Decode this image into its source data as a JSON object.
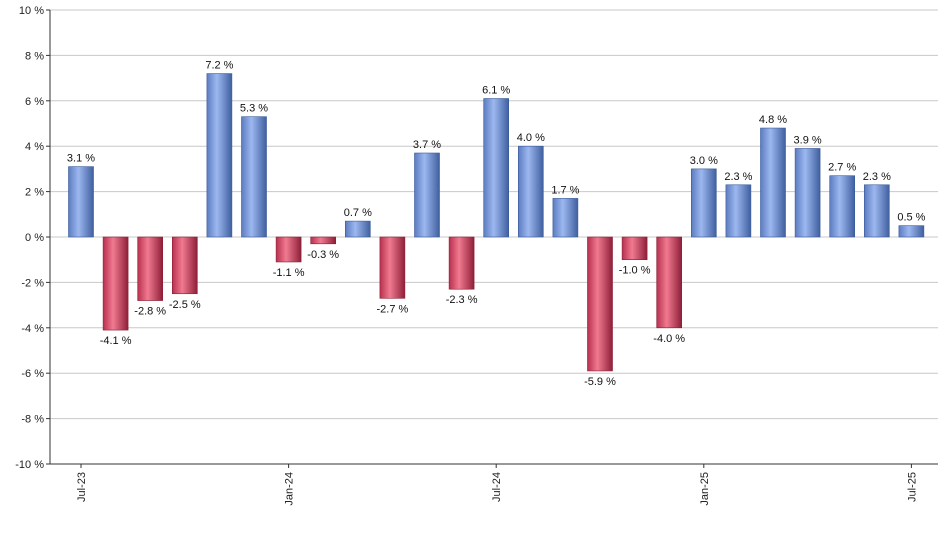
{
  "chart_data": {
    "type": "bar",
    "title": "",
    "xlabel": "",
    "ylabel": "",
    "unit_suffix": " %",
    "ylim": [
      -10,
      10
    ],
    "y_ticks": [
      10,
      8,
      6,
      4,
      2,
      0,
      -2,
      -4,
      -6,
      -8,
      -10
    ],
    "y_tick_labels": [
      "10 %",
      "8 %",
      "6 %",
      "4 %",
      "2 %",
      "0 %",
      "-2 %",
      "-4 %",
      "-6 %",
      "-8 %",
      "-10 %"
    ],
    "grid": true,
    "legend": "none",
    "categories": [
      "Jul-23",
      "Aug-23",
      "Sep-23",
      "Oct-23",
      "Nov-23",
      "Dec-23",
      "Jan-24",
      "Feb-24",
      "Mar-24",
      "Apr-24",
      "May-24",
      "Jun-24",
      "Jul-24",
      "Aug-24",
      "Sep-24",
      "Oct-24",
      "Nov-24",
      "Dec-24",
      "Jan-25",
      "Feb-25",
      "Mar-25",
      "Apr-25",
      "May-25",
      "Jun-25",
      "Jul-25"
    ],
    "values": [
      3.1,
      -4.1,
      -2.8,
      -2.5,
      7.2,
      5.3,
      -1.1,
      -0.3,
      0.7,
      -2.7,
      3.7,
      -2.3,
      6.1,
      4.0,
      1.7,
      -5.9,
      -1.0,
      -4.0,
      3.0,
      2.3,
      4.8,
      3.9,
      2.7,
      2.3,
      0.5
    ],
    "data_labels": [
      "3.1 %",
      "-4.1 %",
      "-2.8 %",
      "-2.5 %",
      "7.2 %",
      "5.3 %",
      "-1.1 %",
      "-0.3 %",
      "0.7 %",
      "-2.7 %",
      "3.7 %",
      "-2.3 %",
      "6.1 %",
      "4.0 %",
      "1.7 %",
      "-5.9 %",
      "-1.0 %",
      "-4.0 %",
      "3.0 %",
      "2.3 %",
      "4.8 %",
      "3.9 %",
      "2.7 %",
      "2.3 %",
      "0.5 %"
    ],
    "x_tick_labels": [
      {
        "index": 0,
        "label": "Jul-23"
      },
      {
        "index": 6,
        "label": "Jan-24"
      },
      {
        "index": 12,
        "label": "Jul-24"
      },
      {
        "index": 18,
        "label": "Jan-25"
      },
      {
        "index": 24,
        "label": "Jul-25"
      }
    ],
    "colors": {
      "positive": "#7f9fdc",
      "positive_dark": "#3a5a9a",
      "negative": "#d24a66",
      "negative_dark": "#8a1e36",
      "grid": "#c8c8c8",
      "axis": "#333333"
    }
  }
}
